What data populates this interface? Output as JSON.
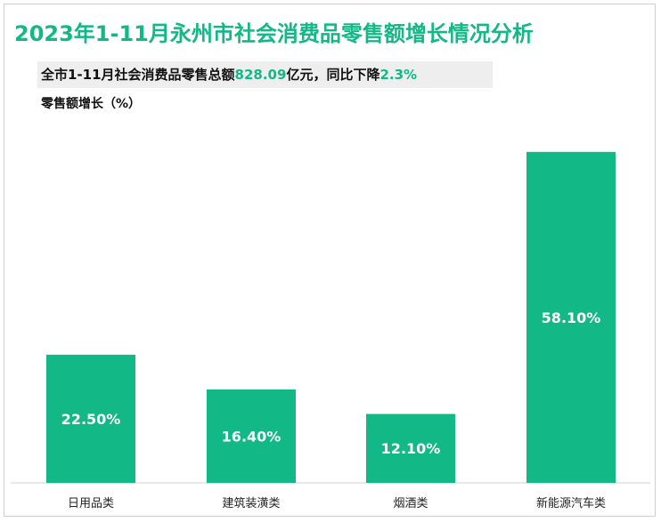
{
  "title": "2023年1-11月永州市社会消费品零售额增长情况分析",
  "summary": {
    "prefix": "全市1-11月社会消费品零售总额",
    "total": "828.09",
    "mid": "亿元，同比下降",
    "decline": "2.3%"
  },
  "chart_data": {
    "type": "bar",
    "title": "2023年1-11月永州市社会消费品零售额增长情况分析",
    "ylabel": "零售额增长（%）",
    "xlabel": "",
    "categories": [
      "日用品类",
      "建筑装潢类",
      "烟酒类",
      "新能源汽车类"
    ],
    "values": [
      22.5,
      16.4,
      12.1,
      58.1
    ],
    "data_labels": [
      "22.50%",
      "16.40%",
      "12.10%",
      "58.10%"
    ],
    "ylim": [
      0,
      70
    ],
    "grid": false,
    "legend": "none",
    "bar_color": "#12b886"
  }
}
